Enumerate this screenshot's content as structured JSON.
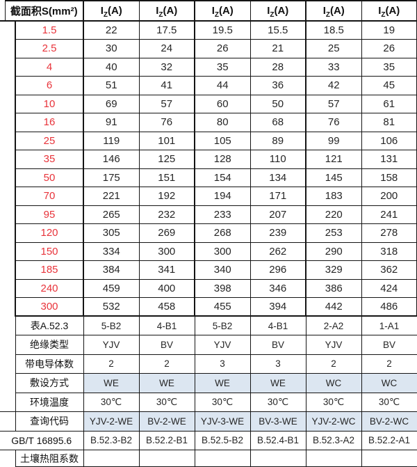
{
  "table": {
    "title_semantic": "cable-ampacity-lookup-table",
    "header": {
      "size_label": "截面积S(mm²)",
      "iz": {
        "base": "I",
        "sub": "Z",
        "rest": "(A)"
      },
      "column_count": 6
    },
    "sizes": [
      "1.5",
      "2.5",
      "4",
      "6",
      "10",
      "16",
      "25",
      "35",
      "50",
      "70",
      "95",
      "120",
      "150",
      "185",
      "240",
      "300"
    ],
    "ampacity": [
      [
        "22",
        "17.5",
        "19.5",
        "15.5",
        "18.5",
        "19"
      ],
      [
        "30",
        "24",
        "26",
        "21",
        "25",
        "26"
      ],
      [
        "40",
        "32",
        "35",
        "28",
        "33",
        "35"
      ],
      [
        "51",
        "41",
        "44",
        "36",
        "42",
        "45"
      ],
      [
        "69",
        "57",
        "60",
        "50",
        "57",
        "61"
      ],
      [
        "91",
        "76",
        "80",
        "68",
        "76",
        "81"
      ],
      [
        "119",
        "101",
        "105",
        "89",
        "99",
        "106"
      ],
      [
        "146",
        "125",
        "128",
        "110",
        "121",
        "131"
      ],
      [
        "175",
        "151",
        "154",
        "134",
        "145",
        "158"
      ],
      [
        "221",
        "192",
        "194",
        "171",
        "183",
        "200"
      ],
      [
        "265",
        "232",
        "233",
        "207",
        "220",
        "241"
      ],
      [
        "305",
        "269",
        "268",
        "239",
        "253",
        "278"
      ],
      [
        "334",
        "300",
        "300",
        "262",
        "290",
        "318"
      ],
      [
        "384",
        "341",
        "340",
        "296",
        "329",
        "362"
      ],
      [
        "459",
        "400",
        "398",
        "346",
        "386",
        "424"
      ],
      [
        "532",
        "458",
        "455",
        "394",
        "442",
        "486"
      ]
    ],
    "footer_rows": [
      {
        "label": "表A.52.3",
        "values": [
          "5-B2",
          "4-B1",
          "5-B2",
          "4-B1",
          "2-A2",
          "1-A1"
        ],
        "highlight": false,
        "gutter_line": false,
        "full_left": false,
        "last": false
      },
      {
        "label": "绝缘类型",
        "values": [
          "YJV",
          "BV",
          "YJV",
          "BV",
          "YJV",
          "BV"
        ],
        "highlight": false,
        "gutter_line": false,
        "full_left": false,
        "last": false
      },
      {
        "label": "带电导体数",
        "values": [
          "2",
          "2",
          "3",
          "3",
          "2",
          "2"
        ],
        "highlight": false,
        "gutter_line": false,
        "full_left": false,
        "last": false
      },
      {
        "label": "敷设方式",
        "values": [
          "WE",
          "WE",
          "WE",
          "WE",
          "WC",
          "WC"
        ],
        "highlight": true,
        "gutter_line": false,
        "full_left": false,
        "last": false
      },
      {
        "label": "环境温度",
        "values": [
          "30℃",
          "30℃",
          "30℃",
          "30℃",
          "30℃",
          "30℃"
        ],
        "highlight": false,
        "gutter_line": true,
        "full_left": false,
        "last": false
      },
      {
        "label": "查询代码",
        "values": [
          "YJV-2-WE",
          "BV-2-WE",
          "YJV-3-WE",
          "BV-3-WE",
          "YJV-2-WC",
          "BV-2-WC"
        ],
        "highlight": true,
        "gutter_line": true,
        "full_left": false,
        "last": false
      },
      {
        "label": "GB/T 16895.6",
        "values": [
          "B.52.3-B2",
          "B.52.2-B1",
          "B.52.5-B2",
          "B.52.4-B1",
          "B.52.3-A2",
          "B.52.2-A1"
        ],
        "highlight": false,
        "gutter_line": false,
        "full_left": true,
        "last": false
      },
      {
        "label": "土壤热阻系数",
        "values": [
          "",
          "",
          "",
          "",
          "",
          ""
        ],
        "highlight": false,
        "gutter_line": false,
        "full_left": false,
        "last": true
      }
    ]
  },
  "colors": {
    "size_red": "#e8333a",
    "highlight_blue": "#dce6f1",
    "border_black": "#141414",
    "value_gray": "#262626"
  }
}
